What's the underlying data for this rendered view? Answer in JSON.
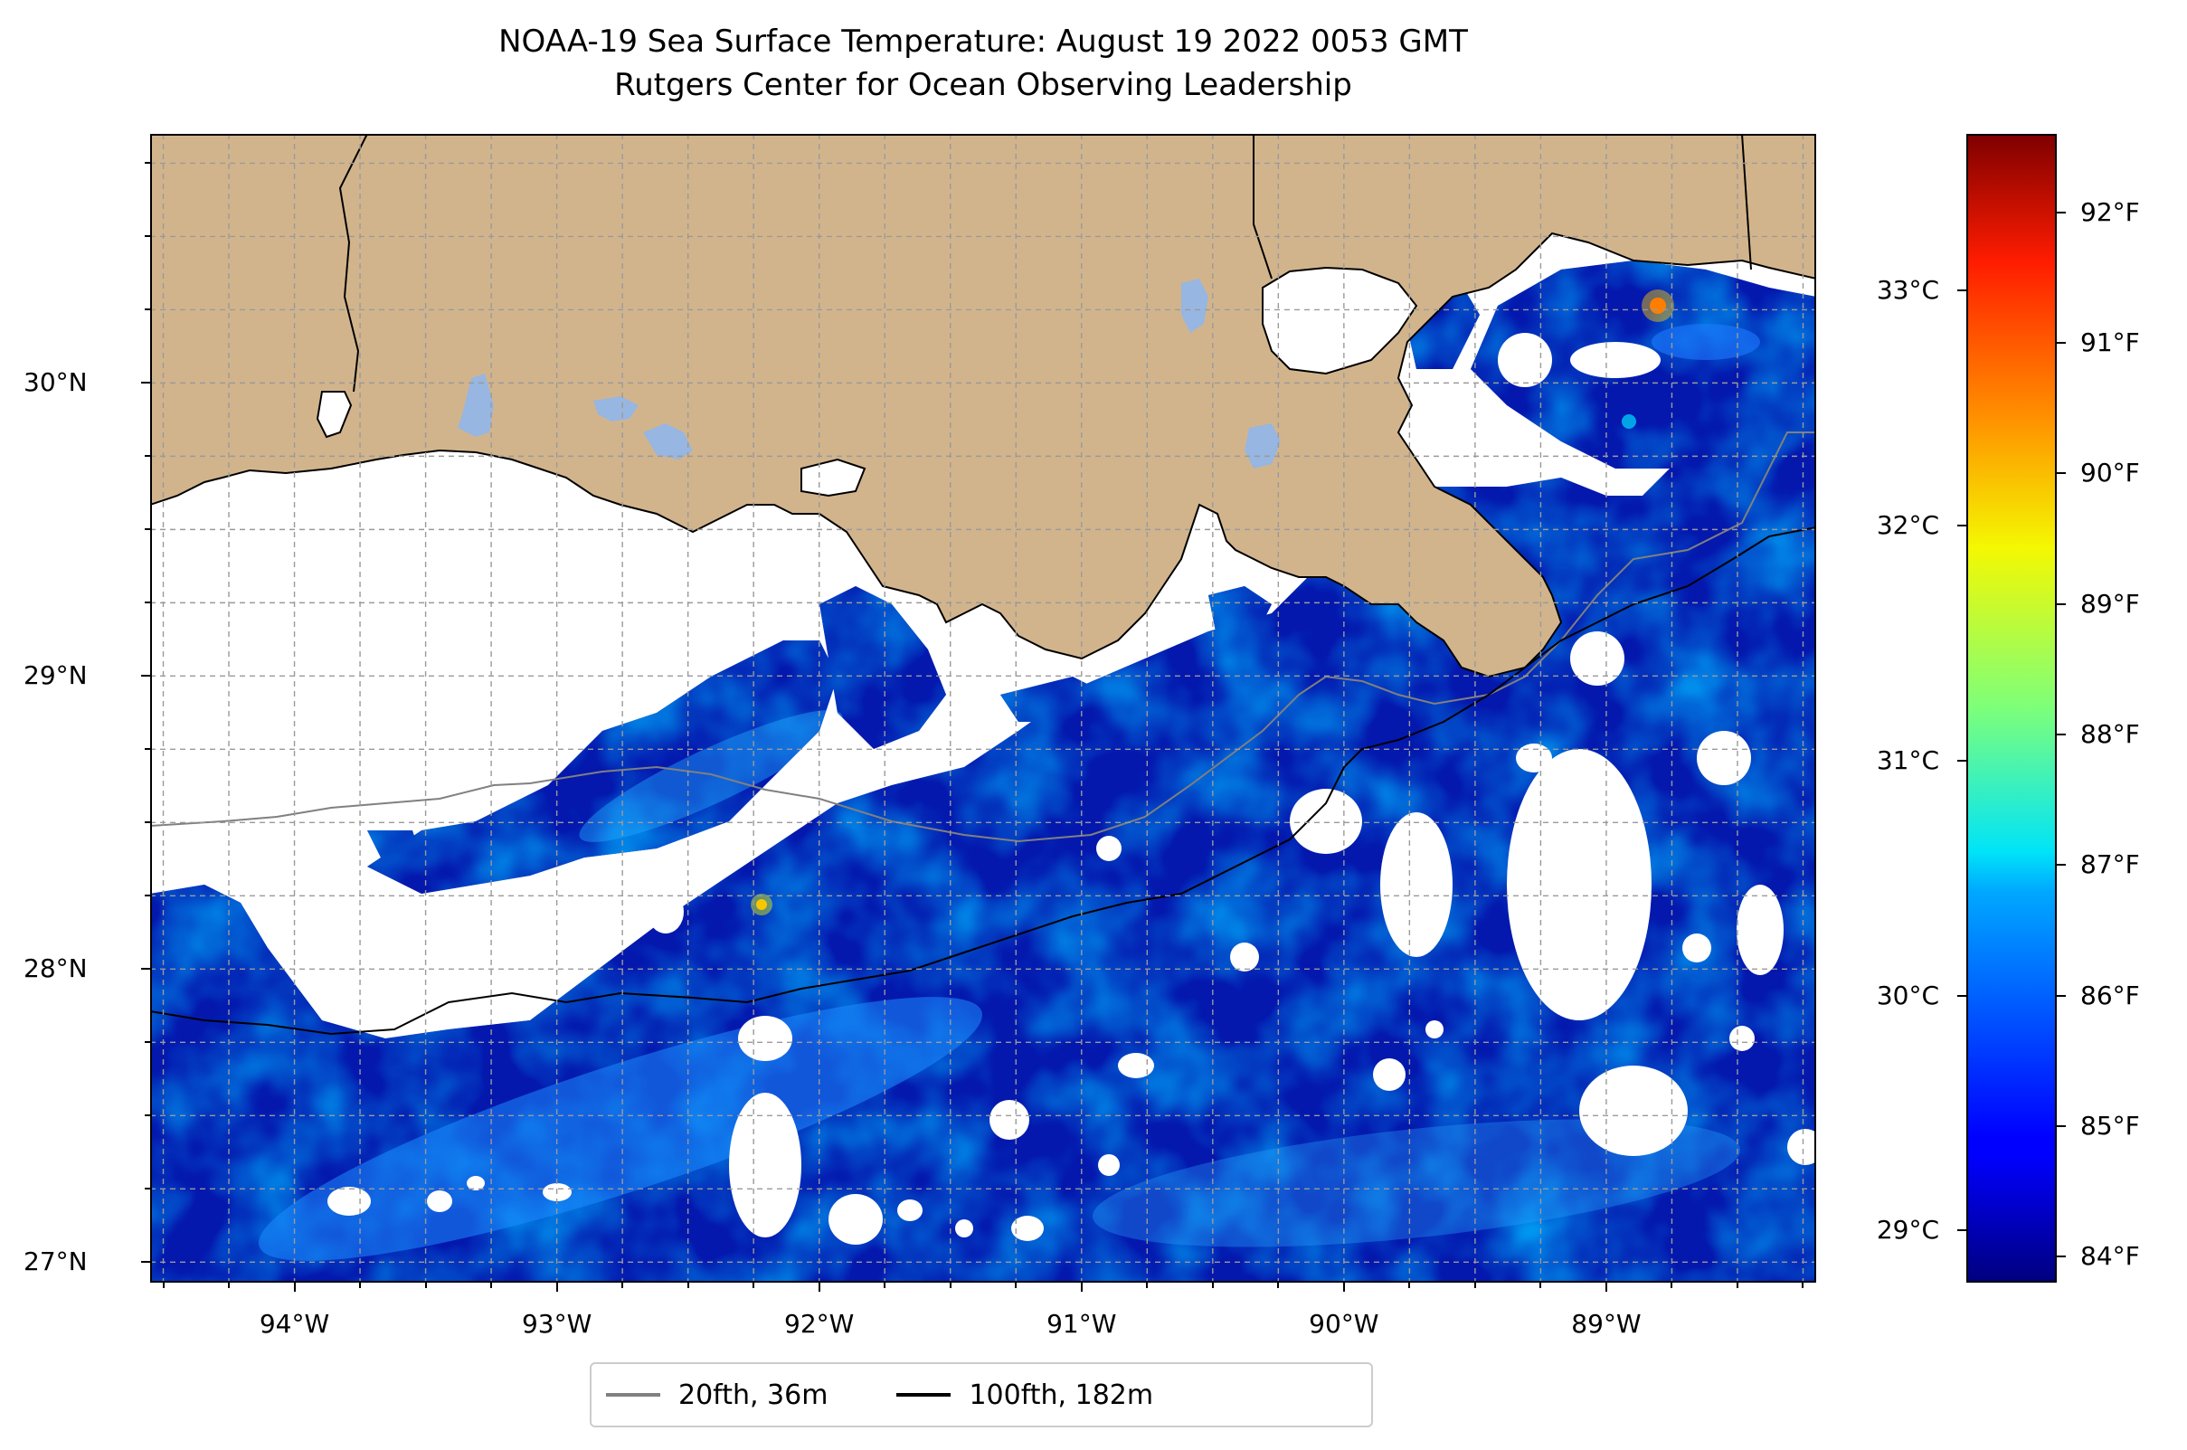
{
  "title": "NOAA-19 Sea Surface Temperature: August 19 2022 0053 GMT",
  "subtitle": "Rutgers Center for Ocean Observing Leadership",
  "map": {
    "extent": {
      "lon_min": -94.55,
      "lon_max": -88.2,
      "lat_min": 26.93,
      "lat_max": 30.85
    },
    "gridlines": true,
    "land_color": "#D2B48C",
    "lake_color": "#97B6E1",
    "cloud_color": "#FFFFFF",
    "lat_ticks": [
      {
        "value": 30,
        "label": "30°N"
      },
      {
        "value": 29,
        "label": "29°N"
      },
      {
        "value": 28,
        "label": "28°N"
      },
      {
        "value": 27,
        "label": "27°N"
      }
    ],
    "lon_ticks": [
      {
        "value": -94,
        "label": "94°W"
      },
      {
        "value": -93,
        "label": "93°W"
      },
      {
        "value": -92,
        "label": "92°W"
      },
      {
        "value": -91,
        "label": "91°W"
      },
      {
        "value": -90,
        "label": "90°W"
      },
      {
        "value": -89,
        "label": "89°W"
      }
    ],
    "sst_scale_f": {
      "min": 83.8,
      "max": 92.6
    }
  },
  "colorbar": {
    "colormap": "jet",
    "fahrenheit_ticks": [
      {
        "value": 84,
        "label": "84°F"
      },
      {
        "value": 85,
        "label": "85°F"
      },
      {
        "value": 86,
        "label": "86°F"
      },
      {
        "value": 87,
        "label": "87°F"
      },
      {
        "value": 88,
        "label": "88°F"
      },
      {
        "value": 89,
        "label": "89°F"
      },
      {
        "value": 90,
        "label": "90°F"
      },
      {
        "value": 91,
        "label": "91°F"
      },
      {
        "value": 92,
        "label": "92°F"
      }
    ],
    "celsius_ticks": [
      {
        "value": 29,
        "label": "29°C"
      },
      {
        "value": 30,
        "label": "30°C"
      },
      {
        "value": 31,
        "label": "31°C"
      },
      {
        "value": 32,
        "label": "32°C"
      },
      {
        "value": 33,
        "label": "33°C"
      }
    ]
  },
  "legend": {
    "placement": "bottom-center",
    "items": [
      {
        "label": "20fth, 36m",
        "color": "#808080"
      },
      {
        "label": "100fth, 182m",
        "color": "#000000"
      }
    ]
  }
}
